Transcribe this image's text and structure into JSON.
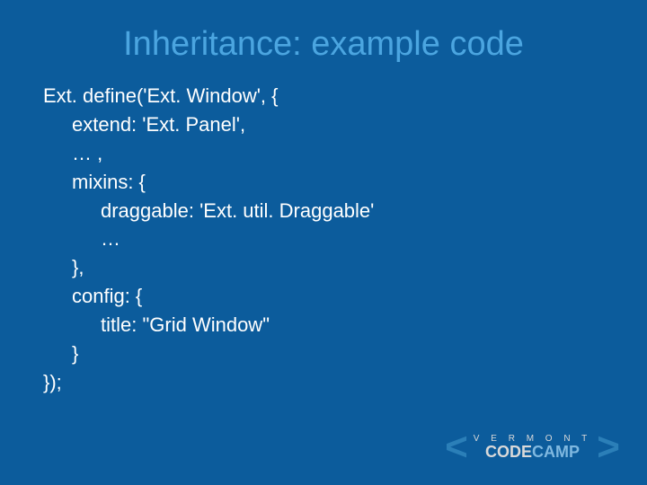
{
  "slide": {
    "title": "Inheritance: example code",
    "title_color": "#4ba5e0",
    "title_fontsize": 38,
    "background_color": "#0c5c9c",
    "text_color": "#ffffff",
    "code_fontsize": 22,
    "code": {
      "line1": "Ext. define('Ext. Window', {",
      "line2": "extend: 'Ext. Panel',",
      "line3": "… ,",
      "line4": "mixins: {",
      "line5": "draggable: 'Ext. util. Draggable'",
      "line6": "…",
      "line7": "},",
      "line8": "config: {",
      "line9": "title: \"Grid Window\"",
      "line10": "}",
      "line11": "});"
    }
  },
  "logo": {
    "top_text": "V E R M O N T",
    "bottom_code": "CODE",
    "bottom_camp": "CAMP",
    "bracket_left": "<",
    "bracket_right": ">",
    "bracket_color": "#2b7fb8",
    "text_color": "#d9d9d9",
    "camp_color": "#7fb8e0"
  }
}
